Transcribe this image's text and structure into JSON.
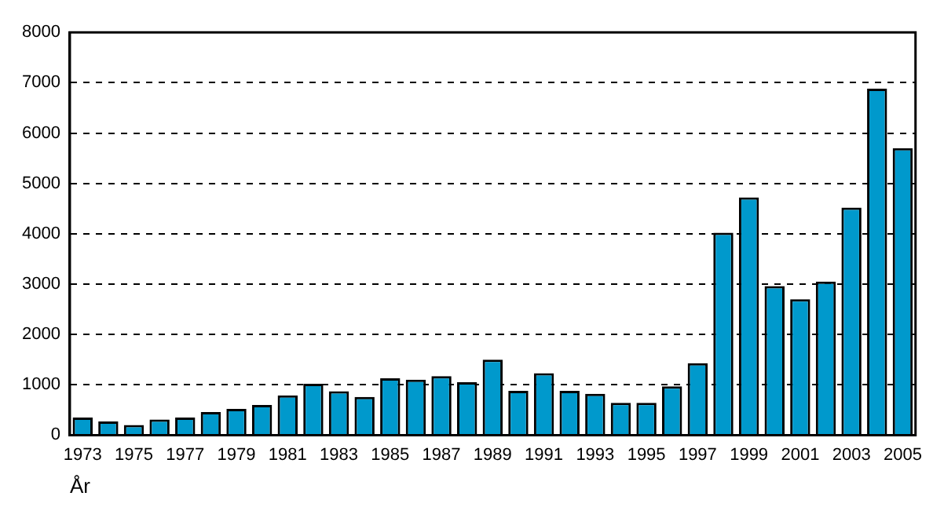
{
  "chart_data": {
    "type": "bar",
    "xlabel": "År",
    "categories": [
      "1973",
      null,
      "1975",
      null,
      "1977",
      null,
      "1979",
      null,
      "1981",
      null,
      "1983",
      null,
      "1985",
      null,
      "1987",
      null,
      "1989",
      null,
      "1991",
      null,
      "1993",
      null,
      "1995",
      null,
      "1997",
      null,
      "1999",
      null,
      "2001",
      null,
      "2003",
      null,
      "2005"
    ],
    "values": [
      350,
      270,
      200,
      310,
      350,
      460,
      520,
      600,
      790,
      1020,
      870,
      760,
      1130,
      1100,
      1170,
      1050,
      1500,
      880,
      1230,
      880,
      820,
      640,
      640,
      970,
      1430,
      4020,
      4720,
      2960,
      2700,
      3050,
      4520,
      6880,
      5700
    ],
    "color": "#0099cc",
    "ylim": [
      0,
      8000
    ],
    "yticks": [
      0,
      1000,
      2000,
      3000,
      4000,
      5000,
      6000,
      7000,
      8000
    ],
    "grid": "y"
  }
}
